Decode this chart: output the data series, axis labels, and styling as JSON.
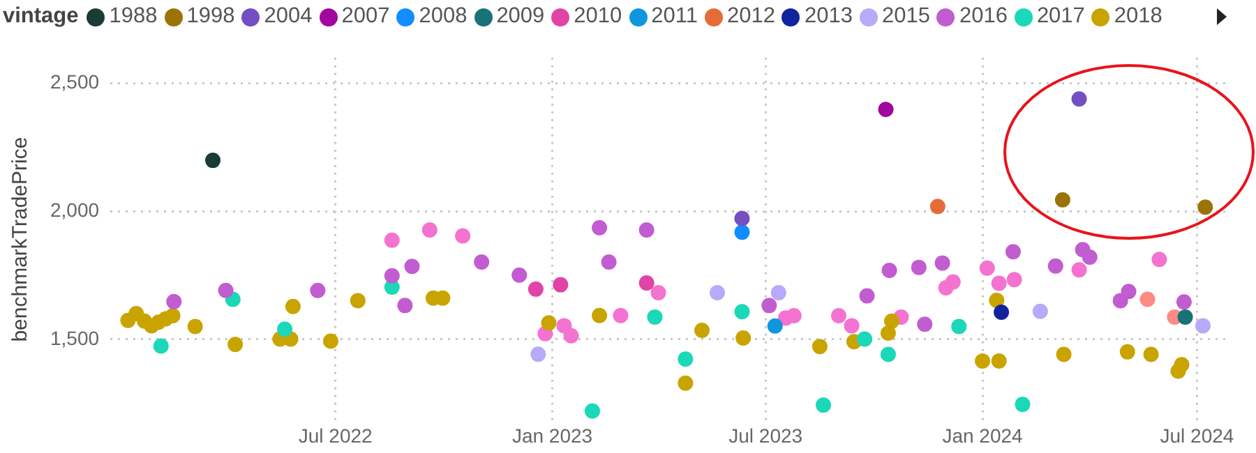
{
  "chart_data": {
    "type": "scatter",
    "ylabel": "benchmarkTradePrice",
    "legend_title": "vintage",
    "legend": "top left",
    "grid": true,
    "marker": "circle",
    "xlim": [
      "2021-12-22",
      "2024-07-25"
    ],
    "xticks": [
      {
        "value": "2022-07-01",
        "label": "Jul 2022"
      },
      {
        "value": "2023-01-01",
        "label": "Jan 2023"
      },
      {
        "value": "2023-07-01",
        "label": "Jul 2023"
      },
      {
        "value": "2024-01-01",
        "label": "Jan 2024"
      },
      {
        "value": "2024-07-01",
        "label": "Jul 2024"
      }
    ],
    "ylim": [
      1180,
      2600
    ],
    "yticks": [
      {
        "value": 1500,
        "label": "1,500"
      },
      {
        "value": 2000,
        "label": "2,000"
      },
      {
        "value": 2500,
        "label": "2,500"
      }
    ],
    "series": [
      {
        "name": "1988",
        "color": "#1b3b36",
        "x": [
          "2022-03-19"
        ],
        "values": [
          2199
        ]
      },
      {
        "name": "1998",
        "color": "#9b7309",
        "x": [
          "2024-03-09",
          "2024-07-08"
        ],
        "values": [
          2045,
          2016
        ]
      },
      {
        "name": "2004",
        "color": "#744ec2",
        "x": [
          "2023-06-11",
          "2024-03-23"
        ],
        "values": [
          1972,
          2439
        ]
      },
      {
        "name": "2007",
        "color": "#a2079d",
        "x": [
          "2023-10-11"
        ],
        "values": [
          2398
        ]
      },
      {
        "name": "2008",
        "color": "#118dff",
        "x": [
          "2023-06-11"
        ],
        "values": [
          1918
        ]
      },
      {
        "name": "2009",
        "color": "#197278",
        "x": [
          "2024-06-21"
        ],
        "values": [
          1587
        ]
      },
      {
        "name": "2010",
        "color": "#e044a7",
        "x": [
          "2022-12-18",
          "2023-01-08",
          "2023-03-22"
        ],
        "values": [
          1696,
          1713,
          1720
        ]
      },
      {
        "name": "2011",
        "color": "#0f97dd",
        "x": [
          "2023-07-09"
        ],
        "values": [
          1552
        ]
      },
      {
        "name": "2012",
        "color": "#e66c37",
        "x": [
          "2023-11-24"
        ],
        "values": [
          2019
        ]
      },
      {
        "name": "2013",
        "color": "#12239e",
        "x": [
          "2024-01-17"
        ],
        "values": [
          1606
        ]
      },
      {
        "name": "2015",
        "color": "#b8a9fa",
        "x": [
          "2022-12-20",
          "2023-05-21",
          "2023-07-12",
          "2024-02-19",
          "2024-07-06"
        ],
        "values": [
          1442,
          1682,
          1682,
          1609,
          1553
        ]
      },
      {
        "name": "2016",
        "color": "#c15dd0",
        "x": [
          "2022-02-14",
          "2022-03-30",
          "2022-06-16",
          "2022-08-18",
          "2022-08-29",
          "2022-09-04",
          "2022-11-02",
          "2022-12-04",
          "2023-02-10",
          "2023-02-18",
          "2023-03-22",
          "2023-07-04",
          "2023-09-25",
          "2023-10-14",
          "2023-11-08",
          "2023-11-13",
          "2023-11-28",
          "2024-01-27",
          "2024-03-03",
          "2024-03-26",
          "2024-04-01",
          "2024-04-27",
          "2024-05-04",
          "2024-06-20"
        ],
        "values": [
          1647,
          1691,
          1691,
          1748,
          1632,
          1785,
          1802,
          1751,
          1936,
          1802,
          1927,
          1632,
          1670,
          1769,
          1781,
          1559,
          1798,
          1842,
          1786,
          1850,
          1821,
          1651,
          1687,
          1646
        ]
      },
      {
        "name": "2017",
        "color": "#1ad8b8",
        "x": [
          "2022-02-03",
          "2022-04-05",
          "2022-05-19",
          "2022-08-18",
          "2023-02-04",
          "2023-03-29",
          "2023-04-24",
          "2023-06-11",
          "2023-08-19",
          "2023-09-23",
          "2023-10-13",
          "2023-12-12",
          "2024-02-04"
        ],
        "values": [
          1474,
          1656,
          1540,
          1704,
          1220,
          1587,
          1423,
          1608,
          1243,
          1501,
          1441,
          1550,
          1246
        ]
      },
      {
        "name": "2018",
        "color": "#c9a400",
        "x": [
          "2022-01-06",
          "2022-01-13",
          "2022-01-20",
          "2022-01-26",
          "2022-02-01",
          "2022-02-07",
          "2022-02-13",
          "2022-03-04",
          "2022-04-07",
          "2022-05-15",
          "2022-05-24",
          "2022-05-26",
          "2022-06-27",
          "2022-07-20",
          "2022-09-22",
          "2022-09-30",
          "2022-12-29",
          "2023-02-10",
          "2023-04-24",
          "2023-05-08",
          "2023-06-12",
          "2023-08-16",
          "2023-09-14",
          "2023-10-13",
          "2023-10-16",
          "2024-01-01",
          "2024-01-13",
          "2024-01-15",
          "2024-03-10",
          "2024-05-03",
          "2024-05-23",
          "2024-06-15",
          "2024-06-18"
        ],
        "values": [
          1574,
          1600,
          1571,
          1553,
          1567,
          1580,
          1592,
          1550,
          1480,
          1501,
          1501,
          1628,
          1493,
          1651,
          1661,
          1661,
          1564,
          1593,
          1329,
          1535,
          1505,
          1472,
          1491,
          1524,
          1571,
          1415,
          1652,
          1415,
          1441,
          1451,
          1441,
          1376,
          1401
        ]
      },
      {
        "color": "#f472d0",
        "x": [
          "2022-08-18",
          "2022-09-19",
          "2022-10-17",
          "2022-12-26",
          "2023-01-11",
          "2023-01-17",
          "2023-02-28",
          "2023-04-01",
          "2023-07-18",
          "2023-07-25",
          "2023-09-01",
          "2023-09-12",
          "2023-10-24",
          "2023-12-01",
          "2023-12-07",
          "2024-01-05",
          "2024-01-15",
          "2024-01-28",
          "2024-03-23",
          "2024-05-30"
        ],
        "values": [
          1887,
          1927,
          1904,
          1522,
          1553,
          1514,
          1593,
          1682,
          1583,
          1592,
          1592,
          1553,
          1587,
          1701,
          1724,
          1778,
          1719,
          1733,
          1771,
          1812
        ]
      },
      {
        "color": "#fd8b83",
        "x": [
          "2024-05-20",
          "2024-06-12"
        ],
        "values": [
          1656,
          1587
        ]
      }
    ]
  }
}
